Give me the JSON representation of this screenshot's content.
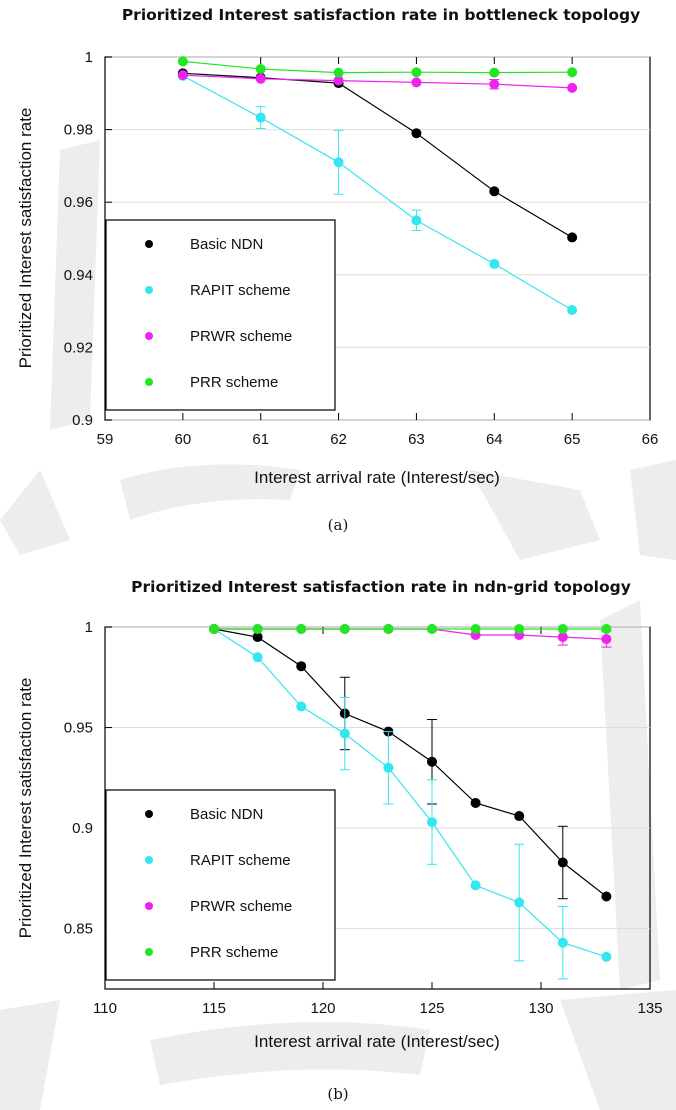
{
  "chart_data": [
    {
      "type": "line",
      "panel_caption": "(a)",
      "title": "Prioritized Interest satisfaction rate in bottleneck topology",
      "xlabel": "Interest arrival rate (Interest/sec)",
      "ylabel": "Prioritized Interest satisfaction rate",
      "xlim": [
        59,
        66
      ],
      "ylim": [
        0.9,
        1.0
      ],
      "xticks": [
        59,
        60,
        61,
        62,
        63,
        64,
        65,
        66
      ],
      "yticks": [
        0.9,
        0.92,
        0.94,
        0.96,
        0.98,
        1
      ],
      "ytick_labels": [
        "0.9",
        "0.92",
        "0.94",
        "0.96",
        "0.98",
        "1"
      ],
      "grid": true,
      "legend": "bottom-left",
      "x": [
        60,
        61,
        62,
        63,
        64,
        65
      ],
      "series": [
        {
          "name": "Basic NDN",
          "color": "#000000",
          "values": [
            0.9955,
            0.9943,
            0.9928,
            0.979,
            0.963,
            0.9503
          ],
          "errors": [
            0,
            0,
            0,
            0,
            0,
            0
          ]
        },
        {
          "name": "RAPIT scheme",
          "color": "#33e6f0",
          "values": [
            0.9948,
            0.9833,
            0.971,
            0.955,
            0.943,
            0.9303
          ],
          "errors": [
            0,
            0.003,
            0.0088,
            0.0028,
            0,
            0
          ]
        },
        {
          "name": "PRWR scheme",
          "color": "#ee22ee",
          "values": [
            0.995,
            0.994,
            0.9935,
            0.993,
            0.9925,
            0.9915
          ],
          "errors": [
            0,
            0,
            0,
            0,
            0.0013,
            0
          ]
        },
        {
          "name": "PRR scheme",
          "color": "#22e622",
          "values": [
            0.9988,
            0.9967,
            0.9957,
            0.9958,
            0.9957,
            0.9958
          ],
          "errors": [
            0,
            0,
            0,
            0,
            0,
            0
          ]
        }
      ]
    },
    {
      "type": "line",
      "panel_caption": "(b)",
      "title": "Prioritized Interest satisfaction rate in ndn-grid topology",
      "xlabel": "Interest arrival rate (Interest/sec)",
      "ylabel": "Prioritized Interest satisfaction rate",
      "xlim": [
        110,
        135
      ],
      "ylim": [
        0.82,
        1.0
      ],
      "xticks": [
        110,
        115,
        120,
        125,
        130,
        135
      ],
      "yticks": [
        0.85,
        0.9,
        0.95,
        1
      ],
      "ytick_labels": [
        "0.85",
        "0.9",
        "0.95",
        "1"
      ],
      "grid": true,
      "legend": "bottom-left",
      "x": [
        115,
        117,
        119,
        121,
        123,
        125,
        127,
        129,
        131,
        133
      ],
      "series": [
        {
          "name": "Basic NDN",
          "color": "#000000",
          "values": [
            0.999,
            0.995,
            0.9805,
            0.957,
            0.948,
            0.933,
            0.9125,
            0.906,
            0.8829,
            0.866
          ],
          "errors": [
            0,
            0,
            0,
            0.018,
            0,
            0.021,
            0,
            0,
            0.018,
            0
          ]
        },
        {
          "name": "RAPIT scheme",
          "color": "#33e6f0",
          "values": [
            0.999,
            0.985,
            0.9605,
            0.947,
            0.93,
            0.903,
            0.8715,
            0.863,
            0.843,
            0.836
          ],
          "errors": [
            0,
            0,
            0,
            0.018,
            0.018,
            0.021,
            0,
            0.029,
            0.018,
            0
          ]
        },
        {
          "name": "PRWR scheme",
          "color": "#ee22ee",
          "values": [
            0.999,
            0.999,
            0.999,
            0.999,
            0.999,
            0.999,
            0.996,
            0.996,
            0.995,
            0.994
          ],
          "errors": [
            0,
            0,
            0,
            0,
            0,
            0,
            0,
            0,
            0.004,
            0.004
          ]
        },
        {
          "name": "PRR scheme",
          "color": "#22e622",
          "values": [
            0.999,
            0.999,
            0.999,
            0.999,
            0.999,
            0.999,
            0.999,
            0.999,
            0.999,
            0.999
          ],
          "errors": [
            0,
            0,
            0,
            0,
            0,
            0,
            0,
            0,
            0,
            0
          ]
        }
      ]
    }
  ]
}
